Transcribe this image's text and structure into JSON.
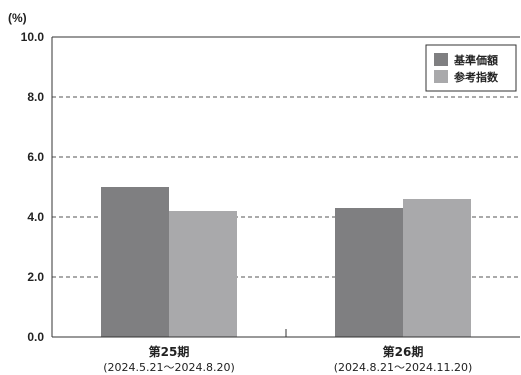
{
  "chart_data": {
    "type": "bar",
    "unit_label": "(%)",
    "categories": [
      "第25期",
      "第26期"
    ],
    "category_periods": [
      "(2024.5.21～2024.8.20)",
      "(2024.8.21～2024.11.20)"
    ],
    "series": [
      {
        "name": "基準価額",
        "values": [
          5.0,
          4.3
        ],
        "color": "#7f7f81"
      },
      {
        "name": "参考指数",
        "values": [
          4.2,
          4.6
        ],
        "color": "#a9a9ab"
      }
    ],
    "yticks": [
      "0.0",
      "2.0",
      "4.0",
      "6.0",
      "8.0",
      "10.0"
    ],
    "ylim": [
      0,
      10
    ],
    "grid": "dashed",
    "legend_position": "top-right"
  }
}
